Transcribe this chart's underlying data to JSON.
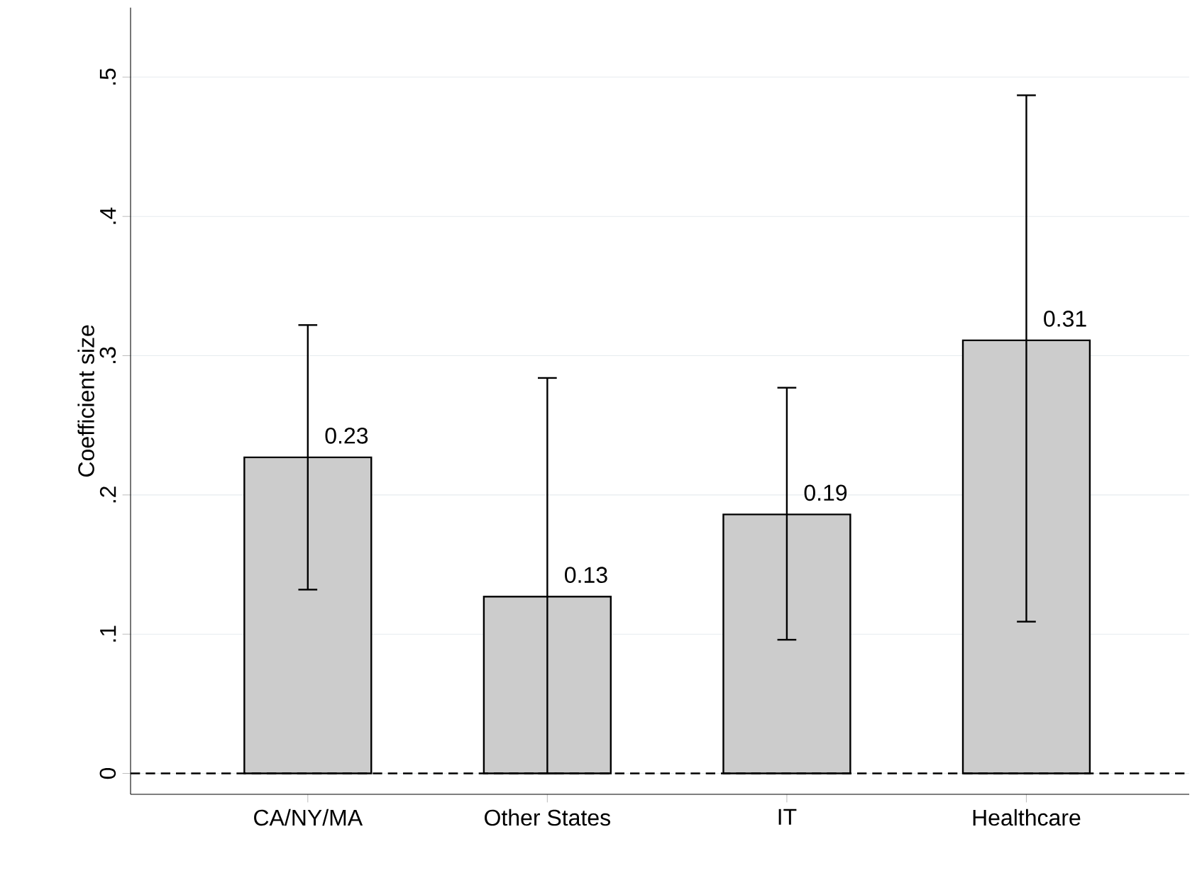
{
  "chart_data": {
    "type": "bar",
    "ylabel": "Coefficient size",
    "categories": [
      "CA/NY/MA",
      "Other States",
      "IT",
      "Healthcare"
    ],
    "values": [
      0.227,
      0.127,
      0.186,
      0.311
    ],
    "errors": [
      [
        0.132,
        0.322
      ],
      [
        0.0,
        0.284
      ],
      [
        0.096,
        0.277
      ],
      [
        0.109,
        0.487
      ]
    ],
    "value_labels": [
      "0.23",
      "0.13",
      "0.19",
      "0.31"
    ],
    "color": "#cccccc",
    "ylim": [
      -0.015,
      0.55
    ],
    "yticks": [
      0,
      {
        "value": 0.1,
        "label": ".1"
      },
      {
        "value": 0.2,
        "label": ".2"
      },
      {
        "value": 0.3,
        "label": ".3"
      },
      {
        "value": 0.4,
        "label": ".4"
      },
      {
        "value": 0.5,
        "label": ".5"
      }
    ],
    "grid": "y",
    "ref_lines": [
      {
        "axis": "y",
        "value": 0,
        "line_style": "dashed",
        "color": "#000000"
      }
    ]
  }
}
